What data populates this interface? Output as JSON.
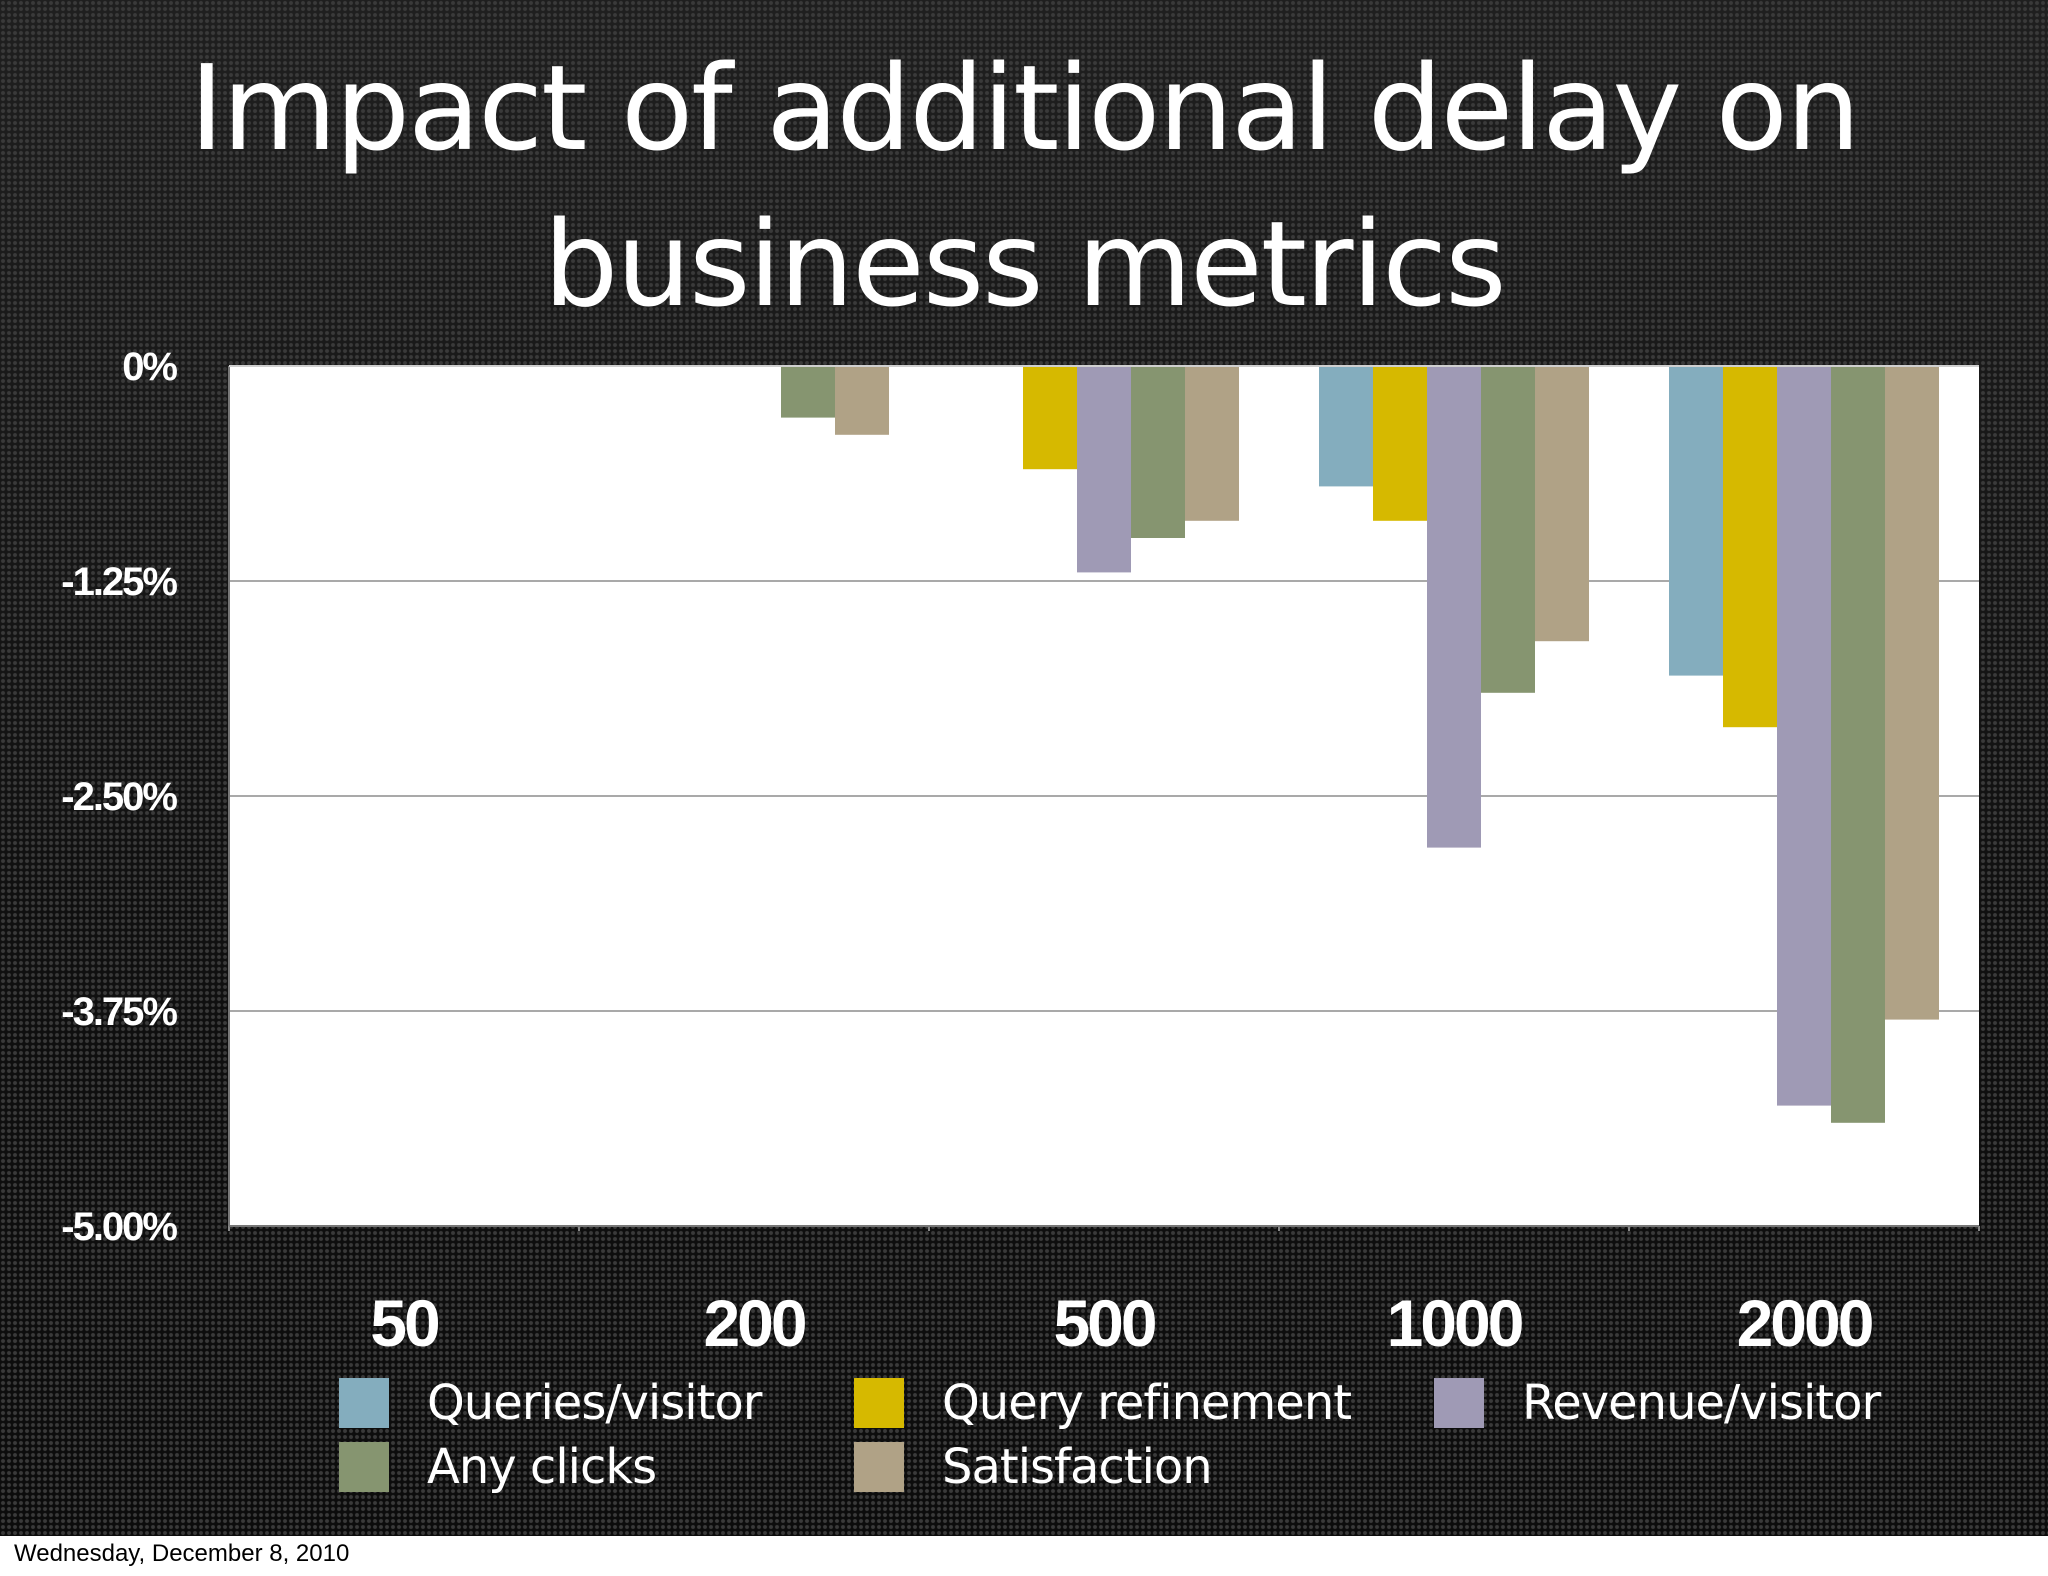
{
  "slide": {
    "title_line1": "Impact of additional delay on",
    "title_line2": "business metrics"
  },
  "footer": {
    "date": "Wednesday, December 8, 2010"
  },
  "chart_data": {
    "type": "bar",
    "title": "Impact of additional delay on business metrics",
    "xlabel": "",
    "ylabel": "",
    "categories": [
      "50",
      "200",
      "500",
      "1000",
      "2000"
    ],
    "y_ticks": [
      0,
      -1.25,
      -2.5,
      -3.75,
      -5.0
    ],
    "y_tick_labels": [
      "0%",
      "-1.25%",
      "-2.50%",
      "-3.75%",
      "-5.00%"
    ],
    "ylim": [
      -5.0,
      0
    ],
    "grid": true,
    "legend_position": "bottom",
    "series": [
      {
        "name": "Queries/visitor",
        "color": "#84adbe",
        "values": [
          0,
          0,
          0,
          -0.7,
          -1.8
        ]
      },
      {
        "name": "Query refinement",
        "color": "#d6b900",
        "values": [
          0,
          0,
          -0.6,
          -0.9,
          -2.1
        ]
      },
      {
        "name": "Revenue/visitor",
        "color": "#9f9ab5",
        "values": [
          0,
          0,
          -1.2,
          -2.8,
          -4.3
        ]
      },
      {
        "name": "Any clicks",
        "color": "#869570",
        "values": [
          0,
          -0.3,
          -1.0,
          -1.9,
          -4.4
        ]
      },
      {
        "name": "Satisfaction",
        "color": "#b0a286",
        "values": [
          0,
          -0.4,
          -0.9,
          -1.6,
          -3.8
        ]
      }
    ]
  }
}
